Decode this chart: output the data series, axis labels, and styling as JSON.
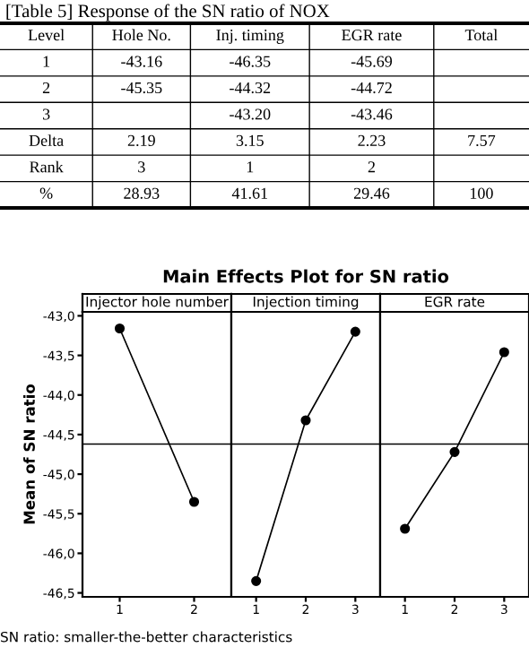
{
  "chart_data": [
    {
      "type": "other",
      "title": "[Table 5] Response of the SN ratio of NOX",
      "categories": [
        "Level",
        "Hole No.",
        "Inj. timing",
        "EGR rate",
        "Total"
      ],
      "annotations": [
        "1",
        "-43.16",
        "-46.35",
        "-45.69",
        null,
        "2",
        "-45.35",
        "-44.32",
        "-44.72",
        null,
        "3",
        null,
        "-43.20",
        "-43.46",
        null,
        "Delta",
        "2.19",
        "3.15",
        "2.23",
        "7.57",
        "Rank",
        "3",
        "1",
        "2",
        null,
        "%",
        "28.93",
        "41.61",
        "29.46",
        "100"
      ]
    },
    {
      "type": "line",
      "title": "Main Effects Plot for SN ratio",
      "subtitle": "Injector hole number",
      "ylabel": "Mean of SN ratio",
      "categories": [
        "1",
        "2"
      ],
      "series": [
        {
          "color": "#000000",
          "values": [
            -43.16,
            -45.35
          ]
        }
      ],
      "marker": "circle",
      "ylim": [
        -46.55,
        -42.95
      ],
      "yticks": [
        {
          "value": -43.0,
          "label": "-43,0"
        },
        {
          "value": -43.5,
          "label": "-43,5"
        },
        {
          "value": -44.0,
          "label": "-44,0"
        },
        {
          "value": -44.5,
          "label": "-44,5"
        },
        {
          "value": -45.0,
          "label": "-45,0"
        },
        {
          "value": -45.5,
          "label": "-45,5"
        },
        {
          "value": -46.0,
          "label": "-46,0"
        },
        {
          "value": -46.5,
          "label": "-46,5"
        }
      ],
      "ref_lines": [
        {
          "axis": "y",
          "value": -44.62
        }
      ],
      "annotations": [
        "SN ratio: smaller-the-better characteristics"
      ]
    },
    {
      "type": "line",
      "subtitle": "Injection timing",
      "categories": [
        "1",
        "2",
        "3"
      ],
      "series": [
        {
          "color": "#000000",
          "values": [
            -46.35,
            -44.32,
            -43.2
          ]
        }
      ],
      "marker": "circle",
      "ylim": [
        -46.55,
        -42.95
      ],
      "tick_labels": "x",
      "ref_lines": [
        {
          "axis": "y",
          "value": -44.62
        }
      ]
    },
    {
      "type": "line",
      "subtitle": "EGR rate",
      "categories": [
        "1",
        "2",
        "3"
      ],
      "series": [
        {
          "color": "#000000",
          "values": [
            -45.69,
            -44.72,
            -43.46
          ]
        }
      ],
      "marker": "circle",
      "ylim": [
        -46.55,
        -42.95
      ],
      "tick_labels": "x",
      "ref_lines": [
        {
          "axis": "y",
          "value": -44.62
        }
      ]
    }
  ]
}
